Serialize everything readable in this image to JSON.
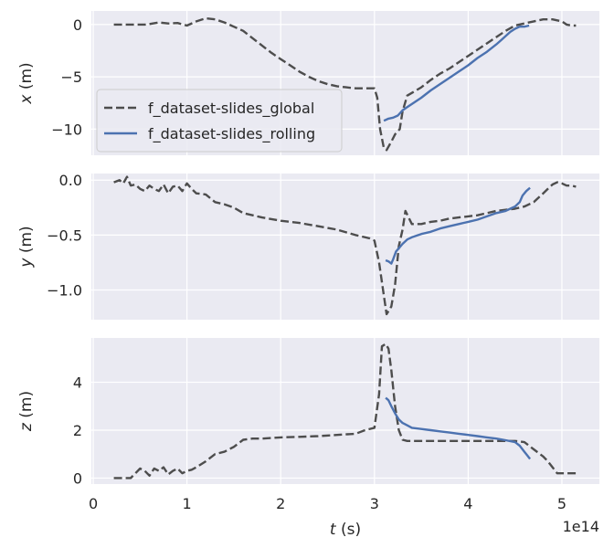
{
  "figure": {
    "x_tick_labels": [
      "0",
      "1",
      "2",
      "3",
      "4",
      "5"
    ],
    "x_axis_label_var": "t",
    "x_axis_label_unit": " (s)",
    "x_offset_label": "1e14"
  },
  "chart_data": [
    {
      "type": "line",
      "subplot": "x",
      "ylabel_var": "x",
      "ylabel_unit": " (m)",
      "xlim": [
        -0.02,
        5.4
      ],
      "ylim": [
        -12.5,
        1.3
      ],
      "y_ticks": [
        0,
        -5,
        -10
      ],
      "y_tick_labels": [
        "0",
        "−5",
        "−10"
      ],
      "grid": true,
      "legend": {
        "position": "center-left",
        "entries": [
          {
            "label": "f_dataset-slides_global",
            "style": "dashed",
            "color": "#4d4d4d"
          },
          {
            "label": "f_dataset-slides_rolling",
            "style": "solid",
            "color": "#4c72b0"
          }
        ]
      },
      "series": [
        {
          "name": "f_dataset-slides_global",
          "style": "dashed",
          "color": "#4d4d4d",
          "x": [
            0.22,
            0.35,
            0.45,
            0.55,
            0.6,
            0.7,
            0.8,
            0.9,
            1.0,
            1.1,
            1.2,
            1.3,
            1.4,
            1.5,
            1.6,
            1.7,
            1.8,
            1.9,
            2.0,
            2.1,
            2.2,
            2.3,
            2.4,
            2.5,
            2.6,
            2.7,
            2.8,
            2.9,
            3.0,
            3.03,
            3.06,
            3.1,
            3.13,
            3.18,
            3.22,
            3.27,
            3.3,
            3.35,
            3.5,
            3.6,
            3.7,
            3.8,
            3.9,
            4.0,
            4.1,
            4.2,
            4.3,
            4.4,
            4.5,
            4.6,
            4.7,
            4.8,
            4.9,
            5.0,
            5.05,
            5.1,
            5.15
          ],
          "y": [
            0,
            0,
            0,
            0,
            0.05,
            0.2,
            0.1,
            0.15,
            -0.1,
            0.3,
            0.6,
            0.5,
            0.2,
            -0.2,
            -0.6,
            -1.3,
            -2.0,
            -2.7,
            -3.3,
            -3.9,
            -4.5,
            -5.0,
            -5.4,
            -5.7,
            -5.9,
            -6.0,
            -6.1,
            -6.1,
            -6.1,
            -7.0,
            -10.0,
            -11.8,
            -12.0,
            -11.2,
            -10.5,
            -10.0,
            -8.3,
            -6.8,
            -6.0,
            -5.3,
            -4.7,
            -4.2,
            -3.6,
            -3.0,
            -2.4,
            -1.8,
            -1.2,
            -0.6,
            -0.1,
            0.1,
            0.3,
            0.5,
            0.5,
            0.3,
            0.0,
            -0.1,
            -0.1
          ]
        },
        {
          "name": "f_dataset-slides_rolling",
          "style": "solid",
          "color": "#4c72b0",
          "x": [
            3.1,
            3.15,
            3.2,
            3.25,
            3.3,
            3.35,
            3.4,
            3.5,
            3.6,
            3.7,
            3.8,
            3.9,
            4.0,
            4.1,
            4.2,
            4.3,
            4.35,
            4.4,
            4.45,
            4.5,
            4.55,
            4.6,
            4.65
          ],
          "y": [
            -9.2,
            -9.0,
            -8.9,
            -8.7,
            -8.2,
            -7.9,
            -7.6,
            -7.0,
            -6.3,
            -5.7,
            -5.1,
            -4.5,
            -3.9,
            -3.2,
            -2.6,
            -1.9,
            -1.5,
            -1.1,
            -0.7,
            -0.4,
            -0.2,
            -0.2,
            -0.1
          ]
        }
      ]
    },
    {
      "type": "line",
      "subplot": "y",
      "ylabel_var": "y",
      "ylabel_unit": " (m)",
      "xlim": [
        -0.02,
        5.4
      ],
      "ylim": [
        -1.27,
        0.06
      ],
      "y_ticks": [
        0.0,
        -0.5,
        -1.0
      ],
      "y_tick_labels": [
        "0.0",
        "−0.5",
        "−1.0"
      ],
      "grid": true,
      "series": [
        {
          "name": "f_dataset-slides_global",
          "style": "dashed",
          "color": "#4d4d4d",
          "x": [
            0.22,
            0.28,
            0.32,
            0.36,
            0.4,
            0.45,
            0.5,
            0.55,
            0.6,
            0.65,
            0.7,
            0.75,
            0.8,
            0.85,
            0.9,
            0.95,
            1.0,
            1.05,
            1.1,
            1.2,
            1.3,
            1.4,
            1.5,
            1.6,
            1.8,
            2.0,
            2.2,
            2.4,
            2.6,
            2.8,
            2.95,
            3.0,
            3.05,
            3.1,
            3.13,
            3.18,
            3.22,
            3.26,
            3.3,
            3.33,
            3.37,
            3.4,
            3.5,
            3.6,
            3.7,
            3.8,
            3.9,
            4.0,
            4.1,
            4.2,
            4.3,
            4.4,
            4.5,
            4.6,
            4.7,
            4.8,
            4.85,
            4.9,
            4.95,
            5.0,
            5.05,
            5.1,
            5.15
          ],
          "y": [
            -0.02,
            0.0,
            -0.03,
            0.03,
            -0.05,
            -0.04,
            -0.08,
            -0.1,
            -0.05,
            -0.08,
            -0.1,
            -0.04,
            -0.12,
            -0.06,
            -0.05,
            -0.1,
            -0.03,
            -0.08,
            -0.12,
            -0.13,
            -0.2,
            -0.22,
            -0.25,
            -0.3,
            -0.34,
            -0.37,
            -0.39,
            -0.42,
            -0.45,
            -0.5,
            -0.53,
            -0.55,
            -0.75,
            -1.05,
            -1.22,
            -1.15,
            -0.95,
            -0.6,
            -0.45,
            -0.28,
            -0.35,
            -0.4,
            -0.4,
            -0.38,
            -0.37,
            -0.35,
            -0.34,
            -0.33,
            -0.32,
            -0.3,
            -0.28,
            -0.27,
            -0.26,
            -0.24,
            -0.2,
            -0.12,
            -0.08,
            -0.04,
            -0.02,
            -0.03,
            -0.05,
            -0.05,
            -0.06
          ]
        },
        {
          "name": "f_dataset-slides_rolling",
          "style": "solid",
          "color": "#4c72b0",
          "x": [
            3.12,
            3.15,
            3.18,
            3.2,
            3.23,
            3.26,
            3.3,
            3.35,
            3.4,
            3.5,
            3.6,
            3.7,
            3.8,
            3.9,
            4.0,
            4.1,
            4.2,
            4.3,
            4.4,
            4.45,
            4.5,
            4.55,
            4.58,
            4.62,
            4.66
          ],
          "y": [
            -0.73,
            -0.74,
            -0.76,
            -0.72,
            -0.65,
            -0.62,
            -0.58,
            -0.54,
            -0.52,
            -0.49,
            -0.47,
            -0.44,
            -0.42,
            -0.4,
            -0.38,
            -0.36,
            -0.33,
            -0.3,
            -0.28,
            -0.26,
            -0.24,
            -0.2,
            -0.14,
            -0.1,
            -0.07
          ]
        }
      ]
    },
    {
      "type": "line",
      "subplot": "z",
      "ylabel_var": "z",
      "ylabel_unit": " (m)",
      "xlim": [
        -0.02,
        5.4
      ],
      "ylim": [
        -0.25,
        5.85
      ],
      "y_ticks": [
        0,
        2,
        4
      ],
      "y_tick_labels": [
        "0",
        "2",
        "4"
      ],
      "grid": true,
      "series": [
        {
          "name": "f_dataset-slides_global",
          "style": "dashed",
          "color": "#4d4d4d",
          "x": [
            0.22,
            0.3,
            0.4,
            0.45,
            0.5,
            0.55,
            0.6,
            0.65,
            0.7,
            0.75,
            0.8,
            0.85,
            0.9,
            0.95,
            1.0,
            1.05,
            1.1,
            1.2,
            1.3,
            1.4,
            1.5,
            1.6,
            1.7,
            1.8,
            2.0,
            2.2,
            2.4,
            2.6,
            2.8,
            2.9,
            3.0,
            3.05,
            3.08,
            3.12,
            3.15,
            3.18,
            3.22,
            3.26,
            3.3,
            3.35,
            3.4,
            3.5,
            3.8,
            4.0,
            4.2,
            4.4,
            4.5,
            4.6,
            4.7,
            4.8,
            4.85,
            4.9,
            4.95,
            5.0,
            5.05,
            5.1,
            5.15
          ],
          "y": [
            0.0,
            0.0,
            0.0,
            0.2,
            0.4,
            0.3,
            0.1,
            0.4,
            0.3,
            0.45,
            0.15,
            0.3,
            0.4,
            0.2,
            0.3,
            0.35,
            0.45,
            0.7,
            1.0,
            1.1,
            1.3,
            1.6,
            1.65,
            1.65,
            1.7,
            1.72,
            1.75,
            1.8,
            1.85,
            2.0,
            2.1,
            3.5,
            5.5,
            5.6,
            5.4,
            4.5,
            3.0,
            2.0,
            1.6,
            1.55,
            1.55,
            1.55,
            1.55,
            1.55,
            1.55,
            1.55,
            1.55,
            1.5,
            1.2,
            0.9,
            0.7,
            0.45,
            0.2,
            0.2,
            0.2,
            0.2,
            0.2
          ]
        },
        {
          "name": "f_dataset-slides_rolling",
          "style": "solid",
          "color": "#4c72b0",
          "x": [
            3.12,
            3.15,
            3.18,
            3.22,
            3.26,
            3.3,
            3.35,
            3.4,
            3.5,
            3.6,
            3.7,
            3.8,
            3.9,
            4.0,
            4.1,
            4.2,
            4.3,
            4.4,
            4.5,
            4.55,
            4.6,
            4.63,
            4.66
          ],
          "y": [
            3.35,
            3.25,
            3.0,
            2.7,
            2.45,
            2.3,
            2.2,
            2.1,
            2.05,
            2.0,
            1.95,
            1.9,
            1.85,
            1.8,
            1.75,
            1.7,
            1.65,
            1.58,
            1.5,
            1.35,
            1.1,
            0.95,
            0.8
          ]
        }
      ]
    }
  ]
}
